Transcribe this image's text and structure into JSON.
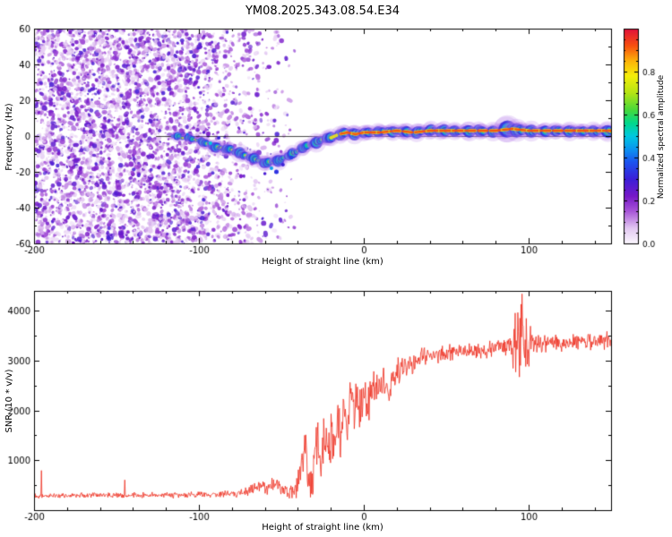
{
  "title": "YM08.2025.343.08.54.E34",
  "colors": {
    "snr_line": "#ee2e1f",
    "axis": "#000000",
    "trace_glow": "#b078e6",
    "background": "#ffffff"
  },
  "chart_data": [
    {
      "type": "heatmap",
      "name": "doppler-spectrogram",
      "xlabel": "Height of straight line (km)",
      "ylabel": "Frequency (Hz)",
      "xlim": [
        -200,
        150
      ],
      "ylim": [
        -60,
        60
      ],
      "x_ticks": [
        -200,
        -100,
        0,
        100
      ],
      "y_ticks": [
        -60,
        -40,
        -20,
        0,
        20,
        40,
        60
      ],
      "x_minor_step": 20,
      "y_minor_step": 10,
      "colorbar": {
        "label": "Normalized spectral amplitude",
        "lim": [
          0,
          1
        ],
        "ticks": [
          0,
          0.2,
          0.4,
          0.6,
          0.8
        ],
        "minor_step": 0.05,
        "stops": [
          [
            0,
            "#faf6fd"
          ],
          [
            0.07,
            "#e3c8f2"
          ],
          [
            0.15,
            "#a855d8"
          ],
          [
            0.22,
            "#7718c8"
          ],
          [
            0.3,
            "#3b1fd8"
          ],
          [
            0.38,
            "#1b55f0"
          ],
          [
            0.44,
            "#0b96f0"
          ],
          [
            0.5,
            "#00c8e0"
          ],
          [
            0.56,
            "#00d88c"
          ],
          [
            0.62,
            "#46d83c"
          ],
          [
            0.7,
            "#b4e414"
          ],
          [
            0.78,
            "#f5ee0a"
          ],
          [
            0.85,
            "#fdb20a"
          ],
          [
            0.92,
            "#f8500f"
          ],
          [
            1,
            "#e0103c"
          ]
        ]
      },
      "noise": {
        "seed": 20251108,
        "speckles": 7200,
        "dark_clusters": 430,
        "x_range": [
          -200,
          -42
        ],
        "dense_until": -105,
        "value_range": [
          0.04,
          0.3
        ]
      },
      "signal_trace": {
        "points": [
          [
            -115,
            0
          ],
          [
            -110,
            -1
          ],
          [
            -105,
            -1
          ],
          [
            -100,
            -3
          ],
          [
            -95,
            -4
          ],
          [
            -90,
            -6
          ],
          [
            -85,
            -7
          ],
          [
            -80,
            -8
          ],
          [
            -75,
            -10
          ],
          [
            -70,
            -12
          ],
          [
            -65,
            -13
          ],
          [
            -60,
            -15
          ],
          [
            -55,
            -14
          ],
          [
            -50,
            -13
          ],
          [
            -45,
            -11
          ],
          [
            -40,
            -8
          ],
          [
            -35,
            -6
          ],
          [
            -30,
            -4
          ],
          [
            -25,
            -2
          ],
          [
            -20,
            -1
          ],
          [
            -15,
            1
          ],
          [
            -10,
            2
          ],
          [
            -5,
            1
          ],
          [
            0,
            2
          ],
          [
            10,
            2
          ],
          [
            20,
            3
          ],
          [
            30,
            2
          ],
          [
            40,
            3
          ],
          [
            50,
            3
          ],
          [
            60,
            3
          ],
          [
            70,
            3
          ],
          [
            80,
            3
          ],
          [
            90,
            4
          ],
          [
            100,
            3
          ],
          [
            110,
            3
          ],
          [
            120,
            3
          ],
          [
            130,
            3
          ],
          [
            140,
            3
          ],
          [
            150,
            3
          ]
        ],
        "core_amplitude": [
          [
            -116,
            0.5
          ],
          [
            -100,
            0.55
          ],
          [
            -85,
            0.62
          ],
          [
            -70,
            0.6
          ],
          [
            -60,
            0.68
          ],
          [
            -50,
            0.62
          ],
          [
            -40,
            0.6
          ],
          [
            -30,
            0.58
          ],
          [
            -22,
            0.66
          ],
          [
            -15,
            0.8
          ],
          [
            -8,
            0.75
          ],
          [
            0,
            0.82
          ],
          [
            10,
            0.8
          ],
          [
            20,
            0.9
          ],
          [
            150,
            0.92
          ]
        ],
        "stray_blobs": [
          [
            -53,
            -20,
            0.33,
            2.5
          ],
          [
            -56,
            -18,
            0.45,
            2
          ],
          [
            -49,
            -16,
            0.3,
            2
          ],
          [
            -44,
            -12,
            0.35,
            2.2
          ],
          [
            -60,
            -21,
            0.28,
            1.8
          ],
          [
            -88,
            -1,
            0.3,
            2
          ],
          [
            -97,
            2,
            0.26,
            1.8
          ],
          [
            -107,
            1,
            0.4,
            1.6
          ],
          [
            -93,
            -4,
            0.5,
            2
          ]
        ],
        "zero_line": {
          "y": 0,
          "x_range": [
            -126,
            150
          ]
        }
      }
    },
    {
      "type": "line",
      "name": "snr-profile",
      "xlabel": "Height of straight line (km)",
      "ylabel": "SNR (10 * v/v)",
      "xlim": [
        -200,
        150
      ],
      "ylim": [
        0,
        4400
      ],
      "x_ticks": [
        -200,
        -100,
        0,
        100
      ],
      "y_ticks": [
        1000,
        2000,
        3000,
        4000
      ],
      "x_minor_step": 20,
      "y_minor_step": 500,
      "series": [
        {
          "name": "SNR",
          "color": "#ee2e1f",
          "seed": 77,
          "envelope": [
            [
              -200,
              290
            ],
            [
              -150,
              300
            ],
            [
              -120,
              300
            ],
            [
              -100,
              310
            ],
            [
              -85,
              320
            ],
            [
              -75,
              330
            ],
            [
              -68,
              420
            ],
            [
              -62,
              520
            ],
            [
              -58,
              430
            ],
            [
              -54,
              560
            ],
            [
              -50,
              430
            ],
            [
              -46,
              350
            ],
            [
              -43,
              330
            ],
            [
              -40,
              520
            ],
            [
              -37,
              900
            ],
            [
              -35,
              1500
            ],
            [
              -34,
              600
            ],
            [
              -32,
              380
            ],
            [
              -30,
              900
            ],
            [
              -28,
              1400
            ],
            [
              -26,
              700
            ],
            [
              -24,
              1600
            ],
            [
              -22,
              1000
            ],
            [
              -20,
              1500
            ],
            [
              -18,
              1100
            ],
            [
              -16,
              1900
            ],
            [
              -14,
              1300
            ],
            [
              -12,
              2100
            ],
            [
              -10,
              1600
            ],
            [
              -8,
              2300
            ],
            [
              -6,
              1800
            ],
            [
              -4,
              2400
            ],
            [
              -2,
              2000
            ],
            [
              0,
              2400
            ],
            [
              3,
              2100
            ],
            [
              6,
              2500
            ],
            [
              9,
              2300
            ],
            [
              12,
              2600
            ],
            [
              15,
              2500
            ],
            [
              18,
              2700
            ],
            [
              21,
              2800
            ],
            [
              25,
              2900
            ],
            [
              30,
              3000
            ],
            [
              35,
              3050
            ],
            [
              40,
              3100
            ],
            [
              50,
              3150
            ],
            [
              60,
              3200
            ],
            [
              70,
              3200
            ],
            [
              80,
              3250
            ],
            [
              90,
              3300
            ],
            [
              100,
              3350
            ],
            [
              110,
              3350
            ],
            [
              120,
              3350
            ],
            [
              130,
              3400
            ],
            [
              140,
              3400
            ],
            [
              150,
              3420
            ]
          ],
          "noise_amplitude": [
            [
              -200,
              60
            ],
            [
              -120,
              65
            ],
            [
              -90,
              70
            ],
            [
              -75,
              90
            ],
            [
              -65,
              160
            ],
            [
              -55,
              180
            ],
            [
              -48,
              120
            ],
            [
              -42,
              200
            ],
            [
              -38,
              450
            ],
            [
              -30,
              500
            ],
            [
              -25,
              600
            ],
            [
              -20,
              600
            ],
            [
              -15,
              650
            ],
            [
              -10,
              650
            ],
            [
              -5,
              550
            ],
            [
              0,
              500
            ],
            [
              5,
              450
            ],
            [
              10,
              400
            ],
            [
              15,
              380
            ],
            [
              20,
              350
            ],
            [
              30,
              280
            ],
            [
              40,
              220
            ],
            [
              50,
              200
            ],
            [
              60,
              190
            ],
            [
              70,
              190
            ],
            [
              80,
              200
            ],
            [
              88,
              250
            ],
            [
              92,
              1100
            ],
            [
              96,
              1300
            ],
            [
              99,
              900
            ],
            [
              102,
              300
            ],
            [
              110,
              200
            ],
            [
              120,
              190
            ],
            [
              130,
              190
            ],
            [
              140,
              200
            ],
            [
              150,
              200
            ]
          ]
        }
      ]
    }
  ]
}
